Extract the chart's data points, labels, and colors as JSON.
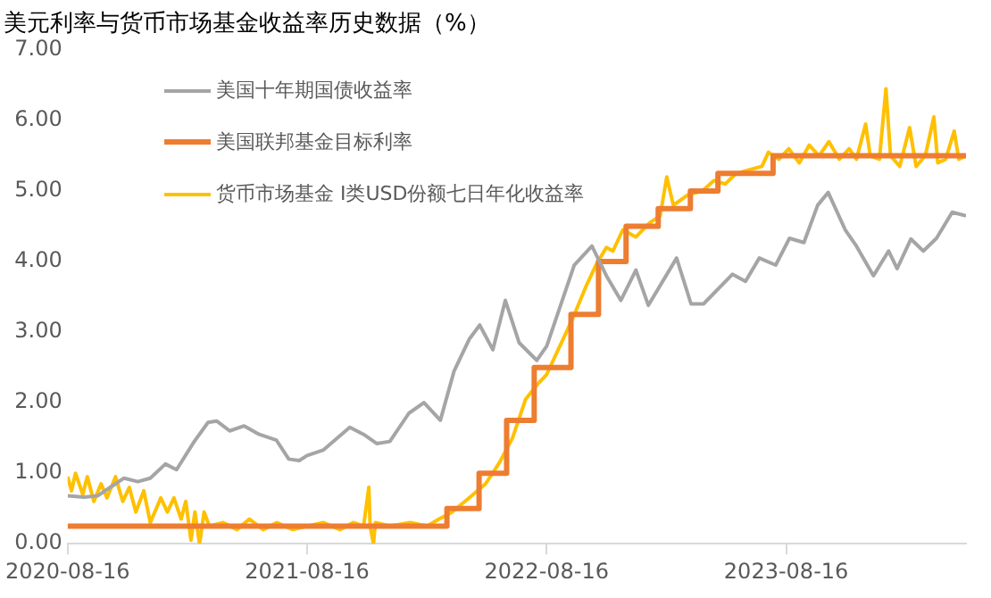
{
  "chart_data": {
    "type": "line",
    "title": "美元利率与货币市场基金收益率历史数据（%）",
    "xlim": [
      "2020-08-16",
      "2024-05-16"
    ],
    "xticks": [
      "2020-08-16",
      "2021-08-16",
      "2022-08-16",
      "2023-08-16"
    ],
    "ylim": [
      0,
      7
    ],
    "yticks": [
      {
        "value": 0,
        "label": "0.00"
      },
      {
        "value": 1,
        "label": "1.00"
      },
      {
        "value": 2,
        "label": "2.00"
      },
      {
        "value": 3,
        "label": "3.00"
      },
      {
        "value": 4,
        "label": "4.00"
      },
      {
        "value": 5,
        "label": "5.00"
      },
      {
        "value": 6,
        "label": "6.00"
      },
      {
        "value": 7,
        "label": "7.00"
      }
    ],
    "grid": false,
    "legend": "top left",
    "marker": "none",
    "line_style": "solid",
    "series": [
      {
        "name": "美国十年期国债收益率",
        "type": "line",
        "color": "#a5a5a5",
        "x": [
          "2020-08-16",
          "2020-09-10",
          "2020-10-01",
          "2020-10-20",
          "2020-11-10",
          "2020-12-01",
          "2020-12-20",
          "2021-01-12",
          "2021-01-29",
          "2021-02-25",
          "2021-03-18",
          "2021-03-31",
          "2021-04-20",
          "2021-05-12",
          "2021-06-04",
          "2021-06-30",
          "2021-07-19",
          "2021-08-04",
          "2021-08-16",
          "2021-09-10",
          "2021-10-20",
          "2021-11-10",
          "2021-11-30",
          "2021-12-20",
          "2022-01-18",
          "2022-02-10",
          "2022-03-07",
          "2022-03-28",
          "2022-04-20",
          "2022-05-06",
          "2022-05-26",
          "2022-06-14",
          "2022-07-05",
          "2022-08-01",
          "2022-08-16",
          "2022-09-27",
          "2022-10-24",
          "2022-11-15",
          "2022-12-07",
          "2022-12-30",
          "2023-01-18",
          "2023-03-02",
          "2023-03-24",
          "2023-04-12",
          "2023-05-26",
          "2023-06-15",
          "2023-07-06",
          "2023-07-31",
          "2023-08-21",
          "2023-09-12",
          "2023-10-03",
          "2023-10-19",
          "2023-11-14",
          "2023-12-01",
          "2023-12-27",
          "2024-01-19",
          "2024-02-01",
          "2024-02-22",
          "2024-03-12",
          "2024-04-01",
          "2024-04-25",
          "2024-05-16"
        ],
        "values": [
          0.68,
          0.66,
          0.68,
          0.8,
          0.93,
          0.88,
          0.93,
          1.13,
          1.05,
          1.45,
          1.72,
          1.74,
          1.6,
          1.67,
          1.55,
          1.47,
          1.2,
          1.18,
          1.25,
          1.33,
          1.65,
          1.55,
          1.42,
          1.45,
          1.85,
          2.0,
          1.75,
          2.45,
          2.9,
          3.1,
          2.75,
          3.45,
          2.85,
          2.6,
          2.8,
          3.95,
          4.22,
          3.8,
          3.45,
          3.88,
          3.38,
          4.05,
          3.4,
          3.4,
          3.82,
          3.72,
          4.05,
          3.95,
          4.33,
          4.27,
          4.8,
          4.98,
          4.45,
          4.22,
          3.8,
          4.15,
          3.9,
          4.32,
          4.15,
          4.33,
          4.7,
          4.65
        ]
      },
      {
        "name": "美国联邦基金目标利率",
        "type": "step",
        "color": "#ed7d31",
        "x": [
          "2020-08-16",
          "2022-03-17",
          "2022-05-05",
          "2022-06-16",
          "2022-07-28",
          "2022-09-22",
          "2022-11-03",
          "2022-12-15",
          "2023-02-02",
          "2023-03-23",
          "2023-05-04",
          "2023-07-27",
          "2024-05-16"
        ],
        "values": [
          0.25,
          0.5,
          1.0,
          1.75,
          2.5,
          3.25,
          4.0,
          4.5,
          4.75,
          5.0,
          5.25,
          5.5,
          5.5
        ]
      },
      {
        "name": "货币市场基金 I类USD份额七日年化收益率",
        "type": "line",
        "color": "#ffc000",
        "x": [
          "2020-08-16",
          "2020-08-22",
          "2020-08-28",
          "2020-09-08",
          "2020-09-15",
          "2020-09-25",
          "2020-10-06",
          "2020-10-15",
          "2020-10-28",
          "2020-11-08",
          "2020-11-18",
          "2020-11-28",
          "2020-12-10",
          "2020-12-20",
          "2021-01-05",
          "2021-01-15",
          "2021-01-25",
          "2021-02-05",
          "2021-02-12",
          "2021-02-20",
          "2021-02-26",
          "2021-03-05",
          "2021-03-12",
          "2021-03-20",
          "2021-04-10",
          "2021-05-01",
          "2021-05-20",
          "2021-06-10",
          "2021-07-01",
          "2021-07-25",
          "2021-08-16",
          "2021-09-10",
          "2021-10-05",
          "2021-10-25",
          "2021-11-10",
          "2021-11-18",
          "2021-11-20",
          "2021-11-25",
          "2021-11-28",
          "2021-12-20",
          "2022-01-20",
          "2022-02-15",
          "2022-03-05",
          "2022-03-25",
          "2022-04-20",
          "2022-05-15",
          "2022-06-05",
          "2022-06-25",
          "2022-07-15",
          "2022-08-01",
          "2022-08-16",
          "2022-09-05",
          "2022-09-25",
          "2022-10-15",
          "2022-10-30",
          "2022-11-15",
          "2022-11-25",
          "2022-12-10",
          "2022-12-30",
          "2023-01-20",
          "2023-02-05",
          "2023-02-15",
          "2023-02-25",
          "2023-03-20",
          "2023-04-10",
          "2023-04-28",
          "2023-05-15",
          "2023-06-01",
          "2023-06-20",
          "2023-07-10",
          "2023-07-20",
          "2023-08-05",
          "2023-08-20",
          "2023-09-05",
          "2023-09-20",
          "2023-10-05",
          "2023-10-20",
          "2023-11-05",
          "2023-11-20",
          "2023-12-01",
          "2023-12-15",
          "2023-12-22",
          "2024-01-05",
          "2024-01-15",
          "2024-01-22",
          "2024-02-05",
          "2024-02-20",
          "2024-03-01",
          "2024-03-15",
          "2024-03-28",
          "2024-04-03",
          "2024-04-15",
          "2024-04-28",
          "2024-05-05",
          "2024-05-16"
        ],
        "values": [
          0.95,
          0.75,
          1.0,
          0.7,
          0.95,
          0.6,
          0.85,
          0.65,
          0.95,
          0.6,
          0.8,
          0.45,
          0.75,
          0.3,
          0.65,
          0.45,
          0.65,
          0.35,
          0.6,
          0.05,
          0.45,
          0.0,
          0.45,
          0.25,
          0.3,
          0.2,
          0.35,
          0.2,
          0.3,
          0.2,
          0.25,
          0.3,
          0.2,
          0.3,
          0.25,
          0.8,
          0.25,
          0.0,
          0.3,
          0.25,
          0.3,
          0.25,
          0.35,
          0.45,
          0.65,
          0.85,
          1.15,
          1.5,
          2.05,
          2.25,
          2.4,
          2.8,
          3.2,
          3.65,
          3.95,
          4.2,
          4.15,
          4.45,
          4.35,
          4.55,
          4.65,
          5.2,
          4.8,
          4.95,
          5.0,
          5.15,
          5.1,
          5.25,
          5.3,
          5.35,
          5.55,
          5.45,
          5.6,
          5.4,
          5.65,
          5.5,
          5.7,
          5.45,
          5.6,
          5.45,
          5.95,
          5.5,
          5.45,
          6.45,
          5.5,
          5.35,
          5.9,
          5.35,
          5.5,
          6.05,
          5.4,
          5.45,
          5.85,
          5.45,
          5.5
        ]
      }
    ]
  }
}
